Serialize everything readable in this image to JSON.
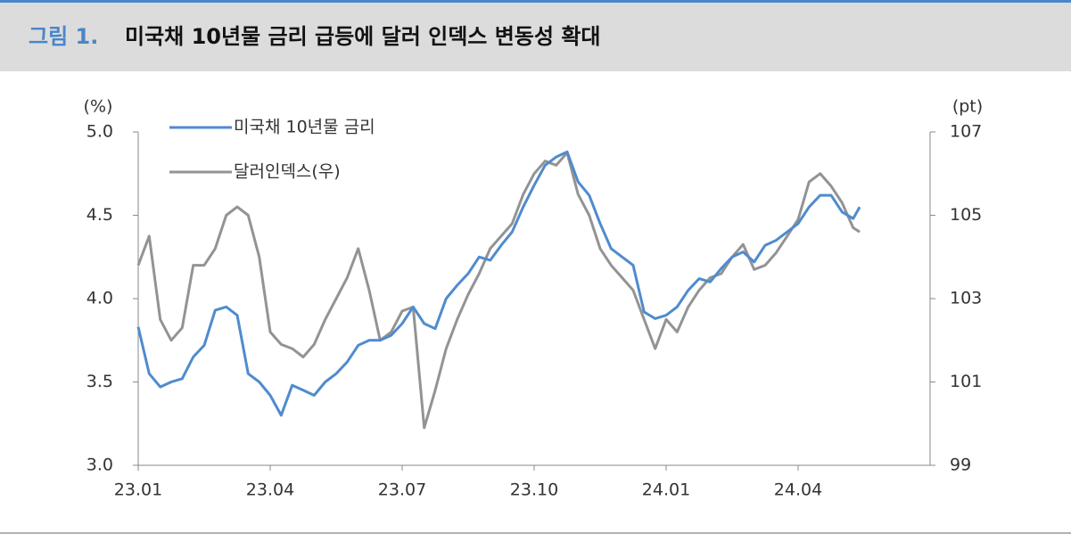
{
  "chart_data": {
    "type": "line",
    "figure_label": "그림 1.",
    "title": "미국채 10년물 금리 급등에 달러 인덱스 변동성 확대",
    "y_label": "(%)",
    "y2_label": "(pt)",
    "legend": "upper left",
    "x": [
      0,
      0.25,
      0.5,
      0.75,
      1,
      1.25,
      1.5,
      1.75,
      2,
      2.25,
      2.5,
      2.75,
      3,
      3.25,
      3.5,
      3.75,
      4,
      4.25,
      4.5,
      4.75,
      5,
      5.25,
      5.5,
      5.75,
      6,
      6.25,
      6.5,
      6.75,
      7,
      7.25,
      7.5,
      7.75,
      8,
      8.25,
      8.5,
      8.75,
      9,
      9.25,
      9.5,
      9.75,
      10,
      10.25,
      10.5,
      10.75,
      11,
      11.25,
      11.5,
      11.75,
      12,
      12.25,
      12.5,
      12.75,
      13,
      13.25,
      13.5,
      13.75,
      14,
      14.25,
      14.5,
      14.75,
      15,
      15.25,
      15.5,
      15.75,
      16,
      16.25,
      16.4
    ],
    "xlim": [
      0,
      18
    ],
    "xticks": [
      {
        "value": 0,
        "label": "23.01"
      },
      {
        "value": 3,
        "label": "23.04"
      },
      {
        "value": 6,
        "label": "23.07"
      },
      {
        "value": 9,
        "label": "23.10"
      },
      {
        "value": 12,
        "label": "24.01"
      },
      {
        "value": 15,
        "label": "24.04"
      }
    ],
    "ylim": [
      3,
      5
    ],
    "yticks": [
      {
        "value": 3,
        "label": "3.0"
      },
      3.5,
      {
        "value": 4,
        "label": "4.0"
      },
      4.5,
      {
        "value": 5,
        "label": "5.0"
      }
    ],
    "y2lim": [
      99,
      107
    ],
    "y2ticks": [
      99,
      101,
      103,
      105,
      107
    ],
    "series": [
      {
        "name": "미국채 10년물 금리",
        "color": "#4f8bcf",
        "values": [
          3.83,
          3.55,
          3.47,
          3.5,
          3.52,
          3.65,
          3.72,
          3.93,
          3.95,
          3.9,
          3.55,
          3.5,
          3.42,
          3.3,
          3.48,
          3.45,
          3.42,
          3.5,
          3.55,
          3.62,
          3.72,
          3.75,
          3.75,
          3.78,
          3.85,
          3.95,
          3.85,
          3.82,
          4.0,
          4.08,
          4.15,
          4.25,
          4.23,
          4.32,
          4.4,
          4.55,
          4.68,
          4.8,
          4.85,
          4.88,
          4.7,
          4.62,
          4.45,
          4.3,
          4.25,
          4.2,
          3.92,
          3.88,
          3.9,
          3.95,
          4.05,
          4.12,
          4.1,
          4.18,
          4.25,
          4.28,
          4.22,
          4.32,
          4.35,
          4.4,
          4.45,
          4.55,
          4.62,
          4.62,
          4.52,
          4.48,
          4.55
        ]
      },
      {
        "name": "달러인덱스(우)",
        "color": "#939393",
        "axis": "y2",
        "values": [
          103.8,
          104.5,
          102.5,
          102.0,
          102.3,
          103.8,
          103.8,
          104.2,
          105.0,
          105.2,
          105.0,
          104.0,
          102.2,
          101.9,
          101.8,
          101.6,
          101.9,
          102.5,
          103.0,
          103.5,
          104.2,
          103.2,
          102.0,
          102.2,
          102.7,
          102.8,
          99.9,
          100.8,
          101.8,
          102.5,
          103.1,
          103.6,
          104.2,
          104.5,
          104.8,
          105.5,
          106.0,
          106.3,
          106.2,
          106.5,
          105.5,
          105.0,
          104.2,
          103.8,
          103.5,
          103.2,
          102.5,
          101.8,
          102.5,
          102.2,
          102.8,
          103.2,
          103.5,
          103.6,
          104.0,
          104.3,
          103.7,
          103.8,
          104.1,
          104.5,
          104.9,
          105.8,
          106.0,
          105.7,
          105.3,
          104.7,
          104.6
        ]
      }
    ]
  }
}
